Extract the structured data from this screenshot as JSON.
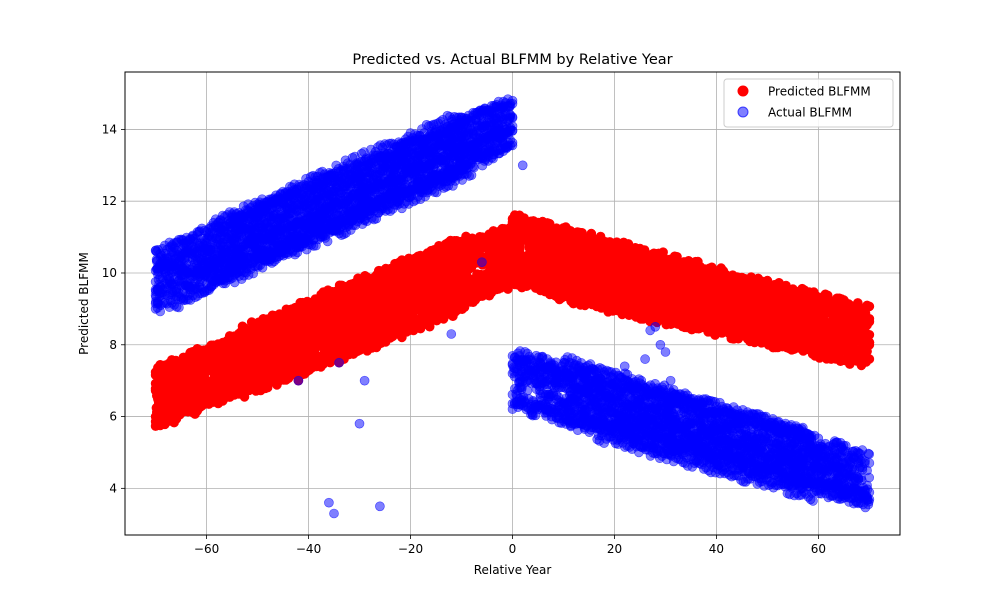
{
  "chart_data": {
    "type": "scatter",
    "title": "Predicted vs. Actual BLFMM by Relative Year",
    "xlabel": "Relative Year",
    "ylabel": "Predicted BLFMM",
    "xlim": [
      -76,
      76
    ],
    "ylim": [
      2.7,
      15.6
    ],
    "xticks": [
      -60,
      -40,
      -20,
      0,
      20,
      40,
      60
    ],
    "xtick_labels": [
      "−60",
      "−40",
      "−20",
      "0",
      "20",
      "40",
      "60"
    ],
    "yticks": [
      4,
      6,
      8,
      10,
      12,
      14
    ],
    "ytick_labels": [
      "4",
      "6",
      "8",
      "10",
      "12",
      "14"
    ],
    "grid": true,
    "legend_position": "top-right",
    "series": [
      {
        "name": "Predicted BLFMM",
        "color": "#ff0000",
        "alpha": 1.0,
        "bands": [
          {
            "x_start": -70,
            "x_end": 0,
            "y_start_low": 5.6,
            "y_start_high": 7.5,
            "y_end_low": 9.5,
            "y_end_high": 11.6
          },
          {
            "x_start": 0,
            "x_end": 70,
            "y_start_low": 9.5,
            "y_start_high": 11.6,
            "y_end_low": 7.4,
            "y_end_high": 9.0
          }
        ],
        "points": [
          {
            "x": -6,
            "y": 10.3
          },
          {
            "x": -42,
            "y": 7.0
          },
          {
            "x": -34,
            "y": 7.5
          }
        ]
      },
      {
        "name": "Actual BLFMM",
        "color": "#0000ff",
        "alpha": 0.5,
        "bands": [
          {
            "x_start": -70,
            "x_end": 0,
            "y_start_low": 8.8,
            "y_start_high": 10.8,
            "y_end_low": 13.2,
            "y_end_high": 15.1
          },
          {
            "x_start": 0,
            "x_end": 70,
            "y_start_low": 6.0,
            "y_start_high": 8.1,
            "y_end_low": 3.3,
            "y_end_high": 5.2
          }
        ],
        "points": [
          {
            "x": -36,
            "y": 3.6
          },
          {
            "x": -35,
            "y": 3.3
          },
          {
            "x": -26,
            "y": 3.5
          },
          {
            "x": -30,
            "y": 5.8
          },
          {
            "x": -29,
            "y": 7.0
          },
          {
            "x": -34,
            "y": 7.5
          },
          {
            "x": -42,
            "y": 7.0
          },
          {
            "x": -12,
            "y": 8.3
          },
          {
            "x": -6,
            "y": 10.3
          },
          {
            "x": 2,
            "y": 13.0
          },
          {
            "x": 27,
            "y": 8.4
          },
          {
            "x": 28,
            "y": 8.5
          },
          {
            "x": 29,
            "y": 8.0
          },
          {
            "x": 30,
            "y": 7.8
          },
          {
            "x": 26,
            "y": 7.6
          },
          {
            "x": 31,
            "y": 7.0
          },
          {
            "x": 22,
            "y": 7.4
          }
        ]
      }
    ]
  }
}
